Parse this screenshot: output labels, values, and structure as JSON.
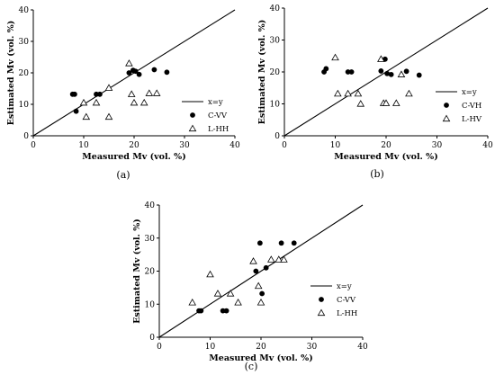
{
  "chart_data": [
    {
      "type": "scatter",
      "panel_label": "(a)",
      "xlabel": "Measured Mv (vol. %)",
      "ylabel": "Estimated Mv (vol. %)",
      "xlim": [
        0,
        40
      ],
      "ylim": [
        0,
        40
      ],
      "xticks": [
        "0",
        "10",
        "20",
        "30",
        "40"
      ],
      "yticks": [
        "0",
        "10",
        "20",
        "30",
        "40"
      ],
      "grid": false,
      "legend_position": "right",
      "reference_line": {
        "name": "x=y",
        "points": [
          [
            0,
            0
          ],
          [
            40,
            40
          ]
        ]
      },
      "series": [
        {
          "name": "C-VV",
          "marker": "circle",
          "x": [
            7.8,
            8.2,
            8.5,
            12.5,
            13.2,
            19.0,
            19.8,
            20.3,
            21.0,
            24.0,
            26.5
          ],
          "y": [
            13.2,
            13.2,
            7.8,
            13.2,
            13.2,
            20.0,
            20.8,
            20.5,
            19.5,
            21.0,
            20.2
          ]
        },
        {
          "name": "L-HH",
          "marker": "triangle",
          "x": [
            10.0,
            10.5,
            12.5,
            15.0,
            15.0,
            19.0,
            19.5,
            20.0,
            22.0,
            23.0,
            24.5
          ],
          "y": [
            10.5,
            6.0,
            10.5,
            15.2,
            6.0,
            23.0,
            13.2,
            10.5,
            10.5,
            13.5,
            13.5
          ]
        }
      ]
    },
    {
      "type": "scatter",
      "panel_label": "(b)",
      "xlabel": "Measured Mv (vol. %)",
      "ylabel": "Estimated Mv (vol. %)",
      "xlim": [
        0,
        40
      ],
      "ylim": [
        0,
        40
      ],
      "xticks": [
        "0",
        "10",
        "20",
        "30",
        "40"
      ],
      "yticks": [
        "0",
        "10",
        "20",
        "30",
        "40"
      ],
      "grid": false,
      "legend_position": "right",
      "reference_line": {
        "name": "x=y",
        "points": [
          [
            0,
            0
          ],
          [
            40,
            40
          ]
        ]
      },
      "series": [
        {
          "name": "C-VH",
          "marker": "circle",
          "x": [
            7.8,
            8.2,
            12.5,
            13.2,
            19.0,
            19.8,
            20.2,
            21.0,
            24.0,
            26.5
          ],
          "y": [
            20.0,
            21.0,
            20.0,
            20.0,
            20.3,
            24.0,
            19.5,
            19.2,
            20.2,
            19.0
          ]
        },
        {
          "name": "L-HV",
          "marker": "triangle",
          "x": [
            10.0,
            10.5,
            12.5,
            14.5,
            15.0,
            19.0,
            19.5,
            20.0,
            22.0,
            23.0,
            24.5
          ],
          "y": [
            24.5,
            13.2,
            13.2,
            13.2,
            10.0,
            24.0,
            10.2,
            10.2,
            10.2,
            19.2,
            13.2
          ]
        }
      ]
    },
    {
      "type": "scatter",
      "panel_label": "(c)",
      "xlabel": "Measured Mv (vol. %)",
      "ylabel": "Estimated Mv (vol. %)",
      "xlim": [
        0,
        40
      ],
      "ylim": [
        0,
        40
      ],
      "xticks": [
        "0",
        "10",
        "20",
        "30",
        "40"
      ],
      "yticks": [
        "0",
        "10",
        "20",
        "30",
        "40"
      ],
      "grid": false,
      "legend_position": "right",
      "reference_line": {
        "name": "x=y",
        "points": [
          [
            0,
            0
          ],
          [
            40,
            40
          ]
        ]
      },
      "series": [
        {
          "name": "C-VV",
          "marker": "circle",
          "x": [
            7.8,
            8.2,
            12.5,
            13.2,
            19.0,
            19.8,
            20.2,
            21.0,
            24.0,
            26.5
          ],
          "y": [
            8.0,
            8.0,
            8.0,
            8.0,
            20.0,
            28.5,
            13.2,
            21.0,
            28.5,
            28.5
          ]
        },
        {
          "name": "L-HH",
          "marker": "triangle",
          "x": [
            6.5,
            10.0,
            11.5,
            14.0,
            15.5,
            18.5,
            19.5,
            20.0,
            22.0,
            23.5,
            24.5
          ],
          "y": [
            10.5,
            19.0,
            13.2,
            13.2,
            10.5,
            23.0,
            15.5,
            10.5,
            23.5,
            23.5,
            23.5
          ]
        }
      ]
    }
  ]
}
